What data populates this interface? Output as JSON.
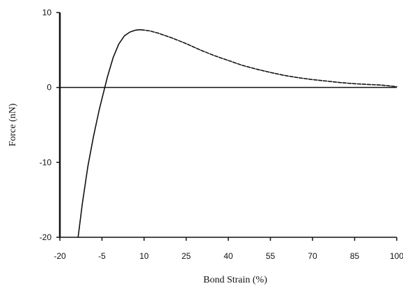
{
  "chart_data": {
    "type": "line",
    "title": "",
    "xlabel": "Bond Strain (%)",
    "ylabel": "Force (nN)",
    "xlim": [
      -20,
      100
    ],
    "ylim": [
      -20,
      10
    ],
    "x_ticks": [
      -20,
      -5,
      10,
      25,
      40,
      55,
      70,
      85,
      100
    ],
    "y_ticks": [
      10,
      0,
      -10,
      -20
    ],
    "x_tick_labels": [
      "-20",
      "-5",
      "10",
      "25",
      "40",
      "55",
      "70",
      "85",
      "100"
    ],
    "y_tick_labels": [
      "10",
      "0",
      "-10",
      "-20"
    ],
    "grid": false,
    "legend": "none",
    "series": [
      {
        "style": "solid",
        "color": "#111111",
        "x": [
          -13.5,
          -12,
          -10,
          -8,
          -6,
          -5,
          -3,
          -1,
          1,
          3,
          5,
          7,
          8,
          9
        ],
        "y": [
          -20,
          -15.5,
          -10.5,
          -6.5,
          -3,
          -1.5,
          1.5,
          4,
          5.8,
          6.9,
          7.4,
          7.65,
          7.7,
          7.7
        ]
      },
      {
        "style": "dashed",
        "color": "#111111",
        "x": [
          9,
          12,
          15,
          20,
          25,
          30,
          35,
          40,
          45,
          50,
          55,
          60,
          65,
          70,
          75,
          80,
          85,
          90,
          95,
          100
        ],
        "y": [
          7.7,
          7.55,
          7.25,
          6.6,
          5.85,
          5.0,
          4.25,
          3.6,
          2.95,
          2.45,
          2.0,
          1.6,
          1.3,
          1.05,
          0.85,
          0.65,
          0.5,
          0.4,
          0.3,
          0.1
        ]
      }
    ],
    "reference_lines": [
      {
        "axis": "y",
        "value": 0
      }
    ]
  }
}
